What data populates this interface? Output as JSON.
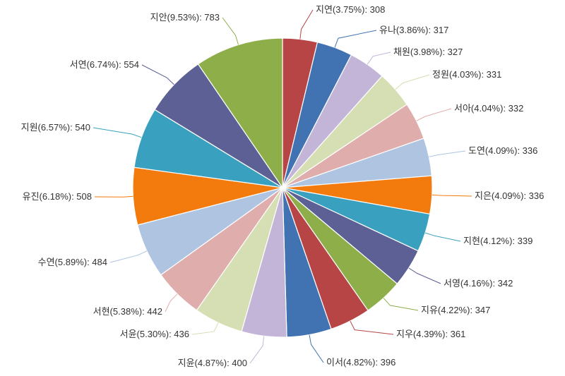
{
  "chart_data": {
    "type": "pie",
    "title": "",
    "slices": [
      {
        "name": "지연",
        "percent": "3.75%",
        "value": 308,
        "color": "#b84545"
      },
      {
        "name": "유나",
        "percent": "3.86%",
        "value": 317,
        "color": "#4172b2"
      },
      {
        "name": "채원",
        "percent": "3.98%",
        "value": 327,
        "color": "#c3b5d8"
      },
      {
        "name": "정원",
        "percent": "4.03%",
        "value": 331,
        "color": "#d6dfb4"
      },
      {
        "name": "서아",
        "percent": "4.04%",
        "value": 332,
        "color": "#dfaeac"
      },
      {
        "name": "도연",
        "percent": "4.09%",
        "value": 336,
        "color": "#aec4e1"
      },
      {
        "name": "지은",
        "percent": "4.09%",
        "value": 336,
        "color": "#f37a0d"
      },
      {
        "name": "지현",
        "percent": "4.12%",
        "value": 339,
        "color": "#3aa0bf"
      },
      {
        "name": "서영",
        "percent": "4.16%",
        "value": 342,
        "color": "#5c6094"
      },
      {
        "name": "지유",
        "percent": "4.22%",
        "value": 347,
        "color": "#8eae4a"
      },
      {
        "name": "지우",
        "percent": "4.39%",
        "value": 361,
        "color": "#b84545"
      },
      {
        "name": "이서",
        "percent": "4.82%",
        "value": 396,
        "color": "#4172b2"
      },
      {
        "name": "지윤",
        "percent": "4.87%",
        "value": 400,
        "color": "#c3b5d8"
      },
      {
        "name": "서윤",
        "percent": "5.30%",
        "value": 436,
        "color": "#d6dfb4"
      },
      {
        "name": "서현",
        "percent": "5.38%",
        "value": 442,
        "color": "#dfaeac"
      },
      {
        "name": "수연",
        "percent": "5.89%",
        "value": 484,
        "color": "#aec4e1"
      },
      {
        "name": "유진",
        "percent": "6.18%",
        "value": 508,
        "color": "#f37a0d"
      },
      {
        "name": "지원",
        "percent": "6.57%",
        "value": 540,
        "color": "#3aa0bf"
      },
      {
        "name": "서연",
        "percent": "6.74%",
        "value": 554,
        "color": "#5c6094"
      },
      {
        "name": "지안",
        "percent": "9.53%",
        "value": 783,
        "color": "#8eae4a"
      }
    ]
  }
}
